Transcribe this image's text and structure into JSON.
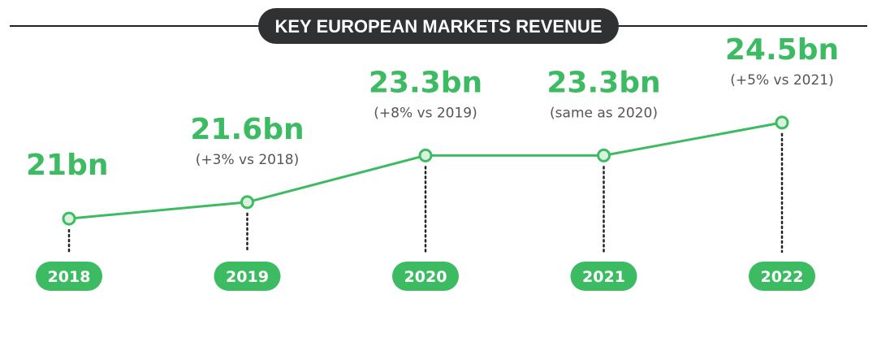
{
  "colors": {
    "accent": "#3dbb62",
    "point_fill": "#d9f2de",
    "title_bg": "#2f3133",
    "rule": "#222222",
    "note": "#555555"
  },
  "chart_data": {
    "type": "line",
    "title": "KEY EUROPEAN MARKETS REVENUE",
    "unit": "bn",
    "categories": [
      "2018",
      "2019",
      "2020",
      "2021",
      "2022"
    ],
    "values": [
      21,
      21.6,
      23.3,
      23.3,
      24.5
    ],
    "ylim": [
      20.5,
      25
    ],
    "value_labels": [
      "21bn",
      "21.6bn",
      "23.3bn",
      "23.3bn",
      "24.5bn"
    ],
    "annotations": [
      "",
      "(+3% vs 2018)",
      "(+8% vs 2019)",
      "(same as 2020)",
      "(+5% vs 2021)"
    ],
    "legend": "none",
    "grid": false
  }
}
